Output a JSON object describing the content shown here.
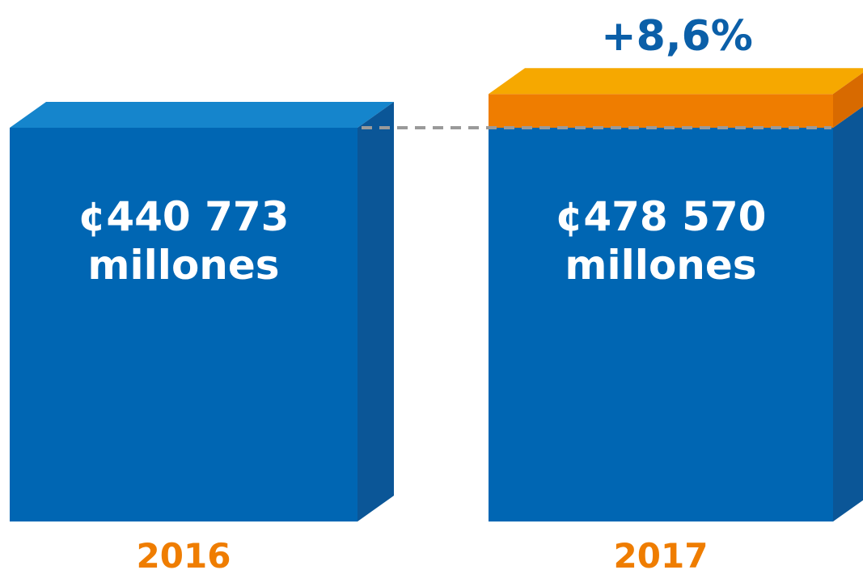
{
  "chart_data": {
    "type": "bar",
    "categories": [
      "2016",
      "2017"
    ],
    "values": [
      440773,
      478570
    ],
    "value_labels": [
      {
        "amount": "¢440 773",
        "unit": "millones"
      },
      {
        "amount": "¢478 570",
        "unit": "millones"
      }
    ],
    "change_label": "+8,6%",
    "title": "",
    "xlabel": "",
    "ylabel": "",
    "grid": false,
    "legend": "none",
    "colors": {
      "bar_front": "#0066B3",
      "bar_top": "#1585CC",
      "bar_side": "#0B5697",
      "increase_front": "#EF7D00",
      "increase_top": "#F6A800",
      "increase_side": "#D86A00",
      "category_text": "#EF7D00",
      "change_text": "#0B5FA8",
      "connector": "#9A9A9A",
      "value_text": "#FFFFFF"
    }
  }
}
